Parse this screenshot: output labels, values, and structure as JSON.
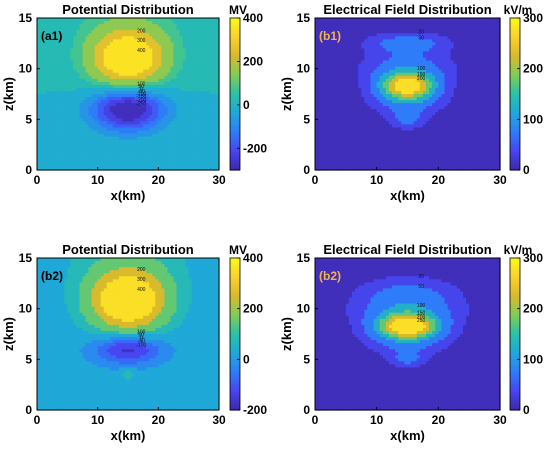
{
  "figure": {
    "colormap": [
      "#3e26a8",
      "#4746f0",
      "#2f7cf9",
      "#1fa8d8",
      "#2ac1a6",
      "#81cc58",
      "#d9ba2c",
      "#fcd02e",
      "#f9fb15"
    ]
  },
  "chart_data": [
    {
      "id": "a1",
      "type": "heatmap",
      "title": "Potential Distribution",
      "panel_label": "(a1)",
      "panel_label_color": "#000000",
      "xlabel": "x(km)",
      "ylabel": "z(km)",
      "xlim": [
        0,
        30
      ],
      "ylim": [
        0,
        15
      ],
      "xticks": [
        "0",
        "10",
        "20",
        "30"
      ],
      "yticks": [
        "0",
        "5",
        "10",
        "15"
      ],
      "colorbar": {
        "unit": "MV",
        "min": -300,
        "max": 400,
        "ticks": [
          "400",
          "200",
          "0",
          "-200"
        ],
        "tick_values": [
          400,
          200,
          0,
          -200
        ]
      },
      "contour_levels": [
        -250,
        -200,
        -150,
        -100,
        -50,
        0,
        50,
        100,
        200,
        300,
        400
      ],
      "contour_labels": [
        "-250",
        "-200",
        "-150",
        "-100",
        "-50",
        "0",
        "50",
        "100",
        "200",
        "300",
        "400"
      ],
      "sources": [
        {
          "x": 15,
          "z": 11,
          "amp": 460,
          "sx": 4.2,
          "sz": 1.9
        },
        {
          "x": 15,
          "z": 6,
          "amp": -330,
          "sx": 4.2,
          "sz": 1.5
        },
        {
          "x": 15,
          "z": 15,
          "amp": 60,
          "sx": 7,
          "sz": 3
        }
      ],
      "background": 0
    },
    {
      "id": "b1",
      "type": "heatmap",
      "title": "Electrical Field Distribution",
      "panel_label": "(b1)",
      "panel_label_color": "#f5b342",
      "xlabel": "x(km)",
      "ylabel": "z(km)",
      "xlim": [
        0,
        30
      ],
      "ylim": [
        0,
        15
      ],
      "xticks": [
        "0",
        "10",
        "20",
        "30"
      ],
      "yticks": [
        "0",
        "5",
        "10",
        "15"
      ],
      "colorbar": {
        "unit": "kV/m",
        "min": 0,
        "max": 300,
        "ticks": [
          "300",
          "200",
          "100",
          "0"
        ],
        "tick_values": [
          300,
          200,
          100,
          0
        ]
      },
      "contour_levels": [
        20,
        50,
        100,
        150,
        200,
        250
      ],
      "contour_labels": [
        "20",
        "50",
        "100",
        "150",
        "200",
        "250"
      ],
      "sources": [
        {
          "x": 15,
          "z": 8.3,
          "amp": 270,
          "sx": 3,
          "sz": 0.9
        },
        {
          "x": 15,
          "z": 10,
          "amp": 70,
          "sx": 5,
          "sz": 1.2
        },
        {
          "x": 15,
          "z": 6.8,
          "amp": 60,
          "sx": 4,
          "sz": 1
        },
        {
          "x": 15,
          "z": 12.5,
          "amp": 70,
          "sx": 4.5,
          "sz": 0.7
        },
        {
          "x": 15,
          "z": 5,
          "amp": 55,
          "sx": 2,
          "sz": 0.7
        }
      ],
      "background": 0
    },
    {
      "id": "a2",
      "type": "heatmap",
      "title": "Potential Distribution",
      "panel_label": "(b2)",
      "panel_label_color": "#000000",
      "xlabel": "x(km)",
      "ylabel": "z(km)",
      "xlim": [
        0,
        30
      ],
      "ylim": [
        0,
        15
      ],
      "xticks": [
        "0",
        "10",
        "20",
        "30"
      ],
      "yticks": [
        "0",
        "5",
        "10",
        "15"
      ],
      "colorbar": {
        "unit": "MV",
        "min": -200,
        "max": 400,
        "ticks": [
          "400",
          "200",
          "0",
          "-200"
        ],
        "tick_values": [
          400,
          200,
          0,
          -200
        ]
      },
      "contour_levels": [
        -150,
        -100,
        -50,
        0,
        50,
        100,
        200,
        300,
        400
      ],
      "contour_labels": [
        "-150",
        "-100",
        "-50",
        "0",
        "50",
        "100",
        "200",
        "300",
        "400"
      ],
      "sources": [
        {
          "x": 15,
          "z": 10.8,
          "amp": 460,
          "sx": 4.2,
          "sz": 2
        },
        {
          "x": 15,
          "z": 6,
          "amp": -200,
          "sx": 3.8,
          "sz": 1
        },
        {
          "x": 15,
          "z": 15,
          "amp": 60,
          "sx": 7,
          "sz": 3
        },
        {
          "x": 15,
          "z": 3.5,
          "amp": 60,
          "sx": 0.8,
          "sz": 0.4
        }
      ],
      "background": 20
    },
    {
      "id": "b2",
      "type": "heatmap",
      "title": "Electrical Field Distribution",
      "panel_label": "(b2)",
      "panel_label_color": "#f5b342",
      "xlabel": "x(km)",
      "ylabel": "z(km)",
      "xlim": [
        0,
        30
      ],
      "ylim": [
        0,
        15
      ],
      "xticks": [
        "0",
        "10",
        "20",
        "30"
      ],
      "yticks": [
        "0",
        "5",
        "10",
        "15"
      ],
      "colorbar": {
        "unit": "kV/m",
        "min": 0,
        "max": 300,
        "ticks": [
          "300",
          "200",
          "100",
          "0"
        ],
        "tick_values": [
          300,
          200,
          100,
          0
        ]
      },
      "contour_levels": [
        20,
        50,
        100,
        150,
        200,
        250
      ],
      "contour_labels": [
        "20",
        "50",
        "100",
        "150",
        "200",
        "250"
      ],
      "sources": [
        {
          "x": 15,
          "z": 8.3,
          "amp": 270,
          "sx": 3.2,
          "sz": 0.8
        },
        {
          "x": 15,
          "z": 9.5,
          "amp": 80,
          "sx": 5.5,
          "sz": 1.2
        },
        {
          "x": 15,
          "z": 7,
          "amp": 70,
          "sx": 4.5,
          "sz": 1
        },
        {
          "x": 15,
          "z": 11.5,
          "amp": 55,
          "sx": 5.5,
          "sz": 1.2
        },
        {
          "x": 15,
          "z": 5,
          "amp": 55,
          "sx": 2.2,
          "sz": 0.6
        }
      ],
      "background": 0
    }
  ]
}
